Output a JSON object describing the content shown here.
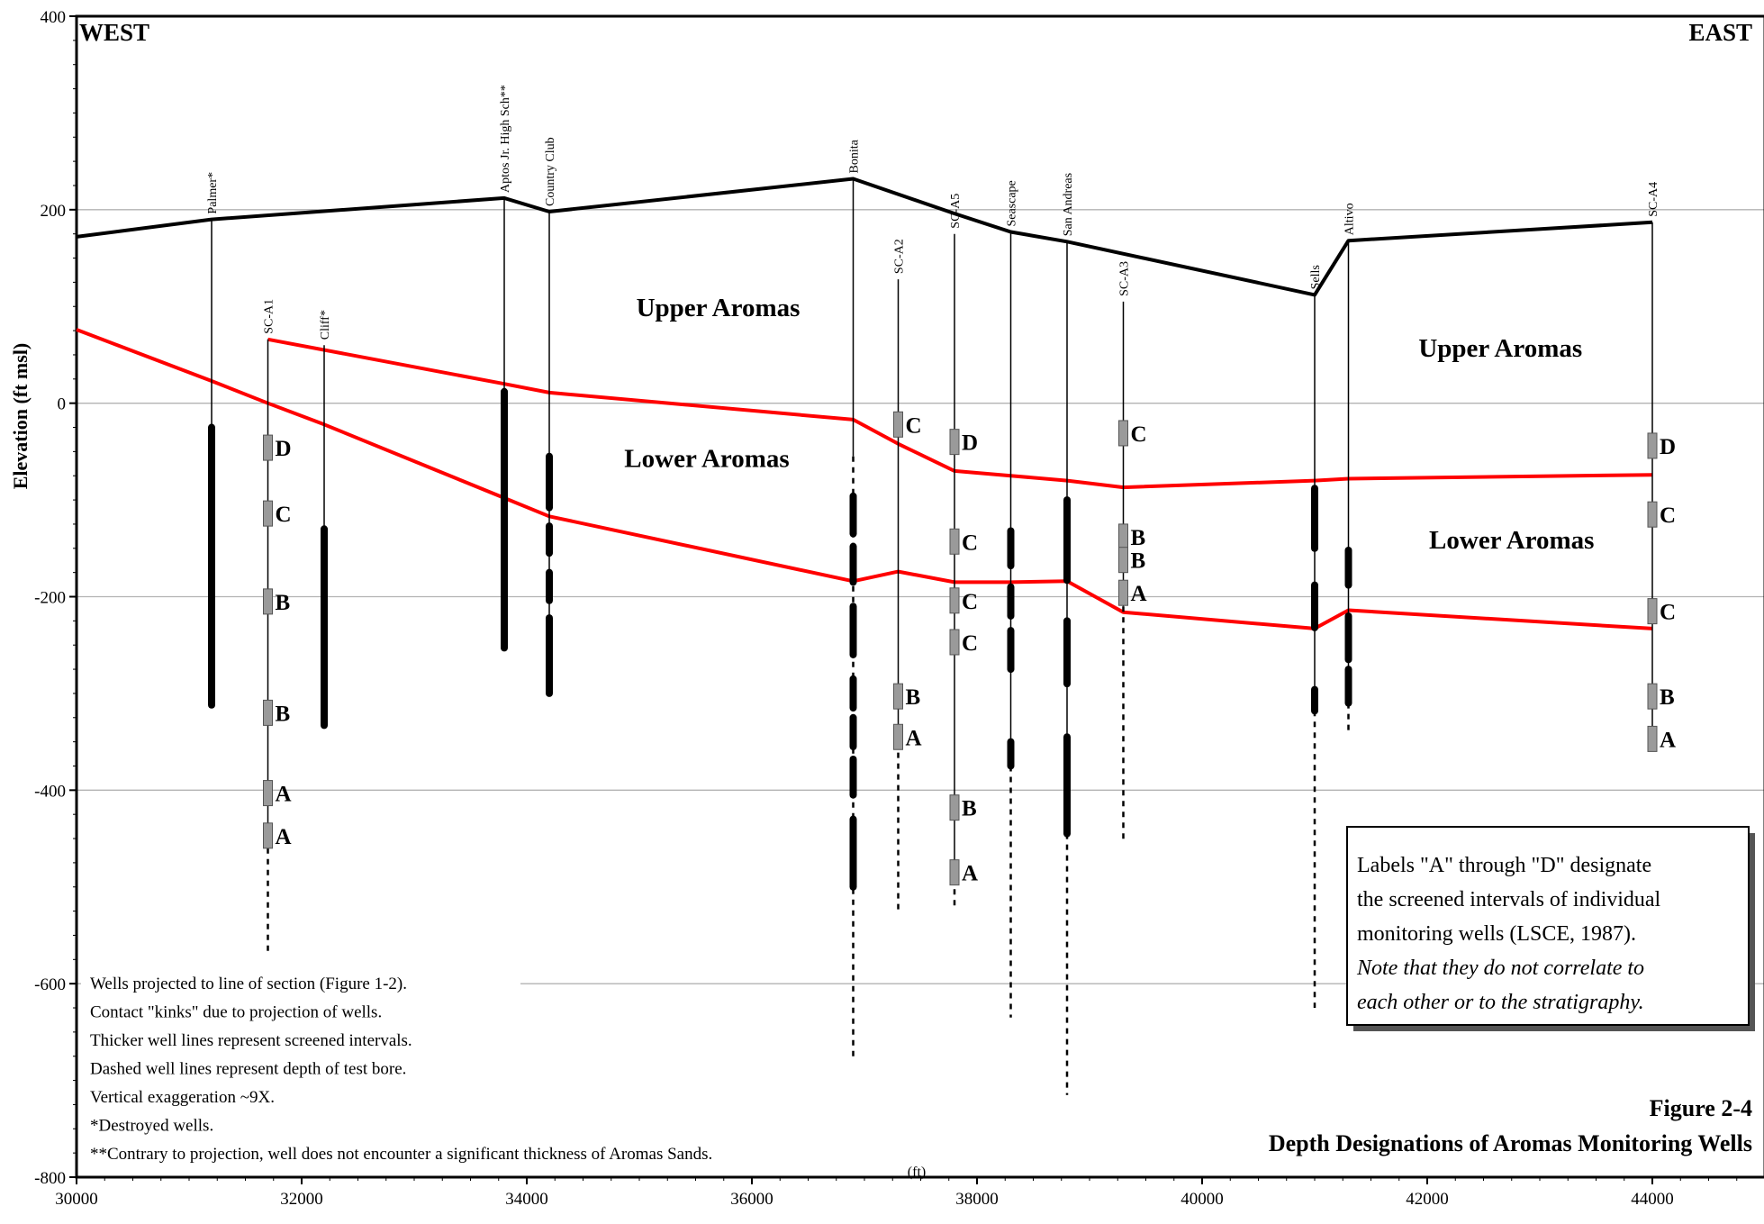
{
  "chart_data": {
    "type": "cross-section",
    "ylabel": "Elevation (ft msl)",
    "xunit": "(ft)",
    "xlim": [
      30000,
      45000
    ],
    "ylim": [
      -800,
      400
    ],
    "xticks": [
      30000,
      32000,
      34000,
      36000,
      38000,
      40000,
      42000,
      44000
    ],
    "yticks": [
      400,
      200,
      0,
      -200,
      -400,
      -600,
      -800
    ],
    "grid": "horizontal",
    "direction_left": "WEST",
    "direction_right": "EAST",
    "units": [
      {
        "name": "Upper Aromas",
        "x": 35700,
        "y": 90
      },
      {
        "name": "Lower Aromas",
        "x": 35600,
        "y": -66
      },
      {
        "name": "Upper Aromas",
        "x": 42650,
        "y": 48
      },
      {
        "name": "Lower Aromas",
        "x": 42750,
        "y": -150
      }
    ],
    "ground_surface": [
      [
        30000,
        172
      ],
      [
        31200,
        190
      ],
      [
        33800,
        212
      ],
      [
        34200,
        198
      ],
      [
        36900,
        232
      ],
      [
        37800,
        196
      ],
      [
        38300,
        177
      ],
      [
        38800,
        167
      ],
      [
        41000,
        112
      ],
      [
        41300,
        168
      ],
      [
        44000,
        187
      ]
    ],
    "upper_contact": [
      [
        31700,
        66
      ],
      [
        33800,
        20
      ],
      [
        34200,
        11
      ],
      [
        36900,
        -17
      ],
      [
        37300,
        -42
      ],
      [
        37800,
        -70
      ],
      [
        38300,
        -75
      ],
      [
        38800,
        -80
      ],
      [
        39300,
        -87
      ],
      [
        41000,
        -80
      ],
      [
        41300,
        -78
      ],
      [
        44000,
        -74
      ]
    ],
    "lower_contact": [
      [
        30000,
        76
      ],
      [
        31200,
        23
      ],
      [
        31700,
        0
      ],
      [
        32200,
        -22
      ],
      [
        33800,
        -98
      ],
      [
        34200,
        -117
      ],
      [
        36900,
        -184
      ],
      [
        37300,
        -174
      ],
      [
        37800,
        -185
      ],
      [
        38300,
        -185
      ],
      [
        38800,
        -184
      ],
      [
        39300,
        -216
      ],
      [
        41000,
        -233
      ],
      [
        41300,
        -214
      ],
      [
        44000,
        -233
      ]
    ],
    "wells": [
      {
        "name": "Palmer*",
        "x": 31200,
        "top": 190,
        "solid_bottom": -312,
        "bore_bottom": -312,
        "screens": [
          [
            -25,
            -312
          ]
        ],
        "labels": []
      },
      {
        "name": "SC-A1",
        "x": 31700,
        "top": 66,
        "solid_bottom": -460,
        "bore_bottom": -570,
        "screens": [],
        "labels": [
          {
            "t": "D",
            "y": -46
          },
          {
            "t": "C",
            "y": -114
          },
          {
            "t": "B",
            "y": -205
          },
          {
            "t": "B",
            "y": -320
          },
          {
            "t": "A",
            "y": -403
          },
          {
            "t": "A",
            "y": -447
          }
        ]
      },
      {
        "name": "Cliff*",
        "x": 32200,
        "top": 60,
        "solid_bottom": -333,
        "bore_bottom": -333,
        "screens": [
          [
            -130,
            -333
          ]
        ],
        "labels": []
      },
      {
        "name": "Aptos Jr. High Sch**",
        "x": 33800,
        "top": 212,
        "solid_bottom": -253,
        "bore_bottom": -253,
        "screens": [
          [
            12,
            -253
          ]
        ],
        "labels": []
      },
      {
        "name": "Country Club",
        "x": 34200,
        "top": 198,
        "solid_bottom": -300,
        "bore_bottom": -300,
        "screens": [
          [
            -55,
            -108
          ],
          [
            -127,
            -155
          ],
          [
            -175,
            -204
          ],
          [
            -222,
            -300
          ]
        ],
        "labels": []
      },
      {
        "name": "Bonita",
        "x": 36900,
        "top": 232,
        "solid_bottom": -55,
        "bore_bottom": -680,
        "screens": [
          [
            -96,
            -135
          ],
          [
            -148,
            -185
          ],
          [
            -210,
            -260
          ],
          [
            -285,
            -315
          ],
          [
            -325,
            -355
          ],
          [
            -368,
            -405
          ],
          [
            -430,
            -500
          ]
        ],
        "labels": []
      },
      {
        "name": "SC-A2",
        "x": 37300,
        "top": 128,
        "solid_bottom": -350,
        "bore_bottom": -525,
        "screens": [],
        "labels": [
          {
            "t": "C",
            "y": -22
          },
          {
            "t": "B",
            "y": -303
          },
          {
            "t": "A",
            "y": -345
          }
        ]
      },
      {
        "name": "SC-A5",
        "x": 37800,
        "top": 175,
        "solid_bottom": -480,
        "bore_bottom": -522,
        "screens": [],
        "labels": [
          {
            "t": "D",
            "y": -40
          },
          {
            "t": "C",
            "y": -143
          },
          {
            "t": "C",
            "y": -204
          },
          {
            "t": "C",
            "y": -247
          },
          {
            "t": "B",
            "y": -418
          },
          {
            "t": "A",
            "y": -485
          }
        ]
      },
      {
        "name": "Seascape",
        "x": 38300,
        "top": 177,
        "solid_bottom": -375,
        "bore_bottom": -635,
        "screens": [
          [
            -132,
            -168
          ],
          [
            -190,
            -220
          ],
          [
            -235,
            -275
          ],
          [
            -350,
            -375
          ]
        ],
        "labels": []
      },
      {
        "name": "San Andreas",
        "x": 38800,
        "top": 167,
        "solid_bottom": -445,
        "bore_bottom": -715,
        "screens": [
          [
            -100,
            -183
          ],
          [
            -225,
            -290
          ],
          [
            -345,
            -445
          ]
        ],
        "labels": []
      },
      {
        "name": "SC-A3",
        "x": 39300,
        "top": 105,
        "solid_bottom": -210,
        "bore_bottom": -455,
        "screens": [],
        "labels": [
          {
            "t": "C",
            "y": -31
          },
          {
            "t": "B",
            "y": -138
          },
          {
            "t": "B",
            "y": -162
          },
          {
            "t": "A",
            "y": -196
          }
        ]
      },
      {
        "name": "Sells",
        "x": 41000,
        "top": 112,
        "solid_bottom": -318,
        "bore_bottom": -625,
        "screens": [
          [
            -88,
            -150
          ],
          [
            -188,
            -232
          ],
          [
            -296,
            -318
          ]
        ],
        "labels": []
      },
      {
        "name": "Altivo",
        "x": 41300,
        "top": 168,
        "solid_bottom": -310,
        "bore_bottom": -342,
        "screens": [
          [
            -152,
            -188
          ],
          [
            -220,
            -265
          ],
          [
            -275,
            -310
          ]
        ],
        "labels": []
      },
      {
        "name": "SC-A4",
        "x": 44000,
        "top": 187,
        "solid_bottom": -360,
        "bore_bottom": -360,
        "screens": [],
        "labels": [
          {
            "t": "D",
            "y": -44
          },
          {
            "t": "C",
            "y": -115
          },
          {
            "t": "C",
            "y": -215
          },
          {
            "t": "B",
            "y": -303
          },
          {
            "t": "A",
            "y": -347
          }
        ]
      }
    ]
  },
  "notes": {
    "lines": [
      "Wells projected to line of section (Figure 1-2).",
      "Contact \"kinks\" due to projection of wells.",
      "Thicker well lines represent screened intervals.",
      "Dashed well lines represent depth of test bore.",
      "Vertical exaggeration ~9X.",
      "*Destroyed wells.",
      "**Contrary to projection, well does not encounter a significant thickness of Aromas Sands."
    ]
  },
  "legend": {
    "lines": [
      {
        "text": "Labels \"A\" through \"D\" designate",
        "italic": false
      },
      {
        "text": "the screened intervals of individual",
        "italic": false
      },
      {
        "text": "monitoring wells (LSCE, 1987).",
        "italic": false
      },
      {
        "text": "Note that they do not correlate to",
        "italic": true
      },
      {
        "text": "each other or to the stratigraphy.",
        "italic": true
      }
    ]
  },
  "figure": {
    "number": "Figure 2-4",
    "title": "Depth Designations of Aromas Monitoring Wells"
  },
  "colors": {
    "contact": "#ff0000",
    "ground": "#000000",
    "grid": "#b3b3b3",
    "screen_fill": "#9a9a9a"
  }
}
